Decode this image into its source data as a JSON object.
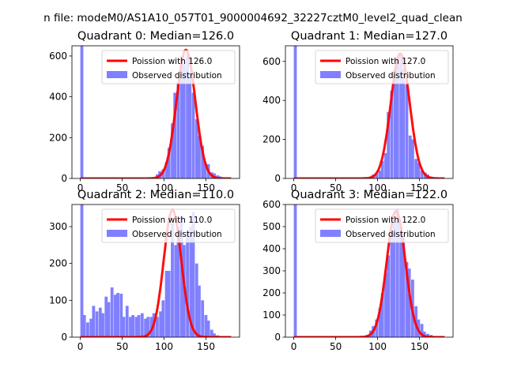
{
  "figure_title": "n file: modeM0/AS1A10_057T01_9000004692_32227cztM0_level2_quad_clean",
  "colors": {
    "hist": "#8080ff",
    "poisson": "#ff0000",
    "axis": "#000000"
  },
  "chart_data": [
    {
      "type": "bar",
      "title": "Quadrant 0: Median=126.0",
      "legend": [
        "Poission with 126.0",
        "Observed distribution"
      ],
      "legend_position": "top-right",
      "xlim": [
        -10,
        190
      ],
      "ylim": [
        0,
        650
      ],
      "xticks": [
        0,
        50,
        100,
        150
      ],
      "xtick_labels": [
        "0",
        "50",
        "100",
        "150"
      ],
      "yticks": [
        0,
        200,
        400,
        600
      ],
      "ytick_labels": [
        "0",
        "200",
        "400",
        "600"
      ],
      "bin_width": 3.6,
      "bins": [
        [
          0,
          650
        ],
        [
          90,
          20
        ],
        [
          93,
          35
        ],
        [
          97,
          45
        ],
        [
          101,
          80
        ],
        [
          104,
          150
        ],
        [
          108,
          270
        ],
        [
          111,
          420
        ],
        [
          115,
          470
        ],
        [
          119,
          600
        ],
        [
          122,
          560
        ],
        [
          126,
          610
        ],
        [
          129,
          520
        ],
        [
          133,
          420
        ],
        [
          137,
          290
        ],
        [
          140,
          210
        ],
        [
          144,
          160
        ],
        [
          147,
          80
        ],
        [
          151,
          70
        ],
        [
          155,
          30
        ],
        [
          158,
          25
        ],
        [
          162,
          15
        ],
        [
          165,
          10
        ],
        [
          169,
          5
        ],
        [
          173,
          5
        ],
        [
          176,
          3
        ]
      ],
      "poisson_mean": 126.0,
      "poisson_peak": 630
    },
    {
      "type": "bar",
      "title": "Quadrant 1: Median=127.0",
      "legend": [
        "Poission with 127.0",
        "Observed distribution"
      ],
      "legend_position": "top-right",
      "xlim": [
        -10,
        190
      ],
      "ylim": [
        0,
        680
      ],
      "xticks": [
        0,
        50,
        100,
        150
      ],
      "xtick_labels": [
        "0",
        "50",
        "100",
        "150"
      ],
      "yticks": [
        0,
        200,
        400,
        600
      ],
      "ytick_labels": [
        "0",
        "200",
        "400",
        "600"
      ],
      "bin_width": 3.6,
      "bins": [
        [
          0,
          680
        ],
        [
          90,
          10
        ],
        [
          93,
          20
        ],
        [
          97,
          25
        ],
        [
          101,
          40
        ],
        [
          104,
          90
        ],
        [
          108,
          130
        ],
        [
          111,
          340
        ],
        [
          115,
          450
        ],
        [
          119,
          560
        ],
        [
          122,
          620
        ],
        [
          126,
          640
        ],
        [
          129,
          560
        ],
        [
          133,
          480
        ],
        [
          137,
          220
        ],
        [
          140,
          200
        ],
        [
          144,
          100
        ],
        [
          147,
          80
        ],
        [
          151,
          40
        ],
        [
          155,
          30
        ],
        [
          158,
          20
        ],
        [
          162,
          10
        ],
        [
          165,
          5
        ],
        [
          169,
          3
        ]
      ],
      "poisson_mean": 127.0,
      "poisson_peak": 640
    },
    {
      "type": "bar",
      "title": "Quadrant 2: Median=110.0",
      "legend": [
        "Poission with 110.0",
        "Observed distribution"
      ],
      "legend_position": "top-right",
      "xlim": [
        -10,
        190
      ],
      "ylim": [
        0,
        360
      ],
      "xticks": [
        0,
        50,
        100,
        150
      ],
      "xtick_labels": [
        "0",
        "50",
        "100",
        "150"
      ],
      "yticks": [
        0,
        100,
        200,
        300
      ],
      "ytick_labels": [
        "0",
        "100",
        "200",
        "300"
      ],
      "bin_width": 3.6,
      "bins": [
        [
          0,
          360
        ],
        [
          3,
          60
        ],
        [
          7,
          40
        ],
        [
          11,
          50
        ],
        [
          14,
          85
        ],
        [
          18,
          70
        ],
        [
          22,
          80
        ],
        [
          25,
          65
        ],
        [
          29,
          110
        ],
        [
          32,
          95
        ],
        [
          36,
          135
        ],
        [
          40,
          115
        ],
        [
          43,
          120
        ],
        [
          47,
          118
        ],
        [
          50,
          55
        ],
        [
          54,
          85
        ],
        [
          58,
          55
        ],
        [
          61,
          60
        ],
        [
          65,
          55
        ],
        [
          68,
          60
        ],
        [
          72,
          65
        ],
        [
          76,
          50
        ],
        [
          79,
          55
        ],
        [
          83,
          55
        ],
        [
          86,
          65
        ],
        [
          90,
          55
        ],
        [
          94,
          70
        ],
        [
          97,
          100
        ],
        [
          101,
          180
        ],
        [
          104,
          180
        ],
        [
          108,
          310
        ],
        [
          112,
          250
        ],
        [
          115,
          300
        ],
        [
          119,
          330
        ],
        [
          122,
          250
        ],
        [
          126,
          290
        ],
        [
          130,
          300
        ],
        [
          133,
          340
        ],
        [
          137,
          200
        ],
        [
          140,
          140
        ],
        [
          144,
          100
        ],
        [
          148,
          60
        ],
        [
          151,
          45
        ],
        [
          155,
          20
        ],
        [
          158,
          10
        ],
        [
          162,
          5
        ]
      ],
      "poisson_mean": 110.0,
      "poisson_peak": 345
    },
    {
      "type": "bar",
      "title": "Quadrant 3: Median=122.0",
      "legend": [
        "Poission with 122.0",
        "Observed distribution"
      ],
      "legend_position": "top-right",
      "xlim": [
        -10,
        190
      ],
      "ylim": [
        0,
        600
      ],
      "xticks": [
        0,
        50,
        100,
        150
      ],
      "xtick_labels": [
        "0",
        "50",
        "100",
        "150"
      ],
      "yticks": [
        0,
        100,
        200,
        300,
        400,
        500,
        600
      ],
      "ytick_labels": [
        "0",
        "100",
        "200",
        "300",
        "400",
        "500",
        "600"
      ],
      "bin_width": 3.6,
      "bins": [
        [
          0,
          600
        ],
        [
          86,
          10
        ],
        [
          90,
          30
        ],
        [
          93,
          50
        ],
        [
          97,
          80
        ],
        [
          101,
          130
        ],
        [
          104,
          200
        ],
        [
          108,
          290
        ],
        [
          111,
          370
        ],
        [
          115,
          470
        ],
        [
          118,
          520
        ],
        [
          122,
          580
        ],
        [
          126,
          500
        ],
        [
          129,
          450
        ],
        [
          133,
          340
        ],
        [
          136,
          310
        ],
        [
          140,
          260
        ],
        [
          144,
          140
        ],
        [
          147,
          80
        ],
        [
          151,
          60
        ],
        [
          154,
          25
        ],
        [
          158,
          15
        ],
        [
          162,
          10
        ],
        [
          165,
          5
        ]
      ],
      "poisson_mean": 122.0,
      "poisson_peak": 570
    }
  ]
}
